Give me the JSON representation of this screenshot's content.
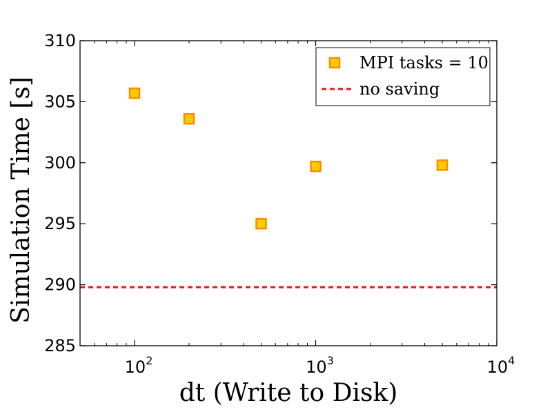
{
  "chart_data": {
    "type": "scatter",
    "title": "",
    "xlabel": "dt (Write to Disk)",
    "ylabel": "Simulation Time [s]",
    "x_scale": "log",
    "xlim": [
      50,
      10000
    ],
    "ylim": [
      285,
      310
    ],
    "grid": false,
    "legend_position": "top-right",
    "x_ticks": [
      {
        "value": 100,
        "base": "10",
        "exp": "2"
      },
      {
        "value": 1000,
        "base": "10",
        "exp": "3"
      },
      {
        "value": 10000,
        "base": "10",
        "exp": "4"
      }
    ],
    "y_ticks": [
      285,
      290,
      295,
      300,
      305,
      310
    ],
    "y_tick_labels": [
      "285",
      "290",
      "295",
      "300",
      "305",
      "310"
    ],
    "series": [
      {
        "name": "MPI tasks = 10",
        "kind": "scatter",
        "marker": "square",
        "fill_color": "#FFCC00",
        "edge_color": "#FF8C00",
        "x": [
          100,
          200,
          500,
          1000,
          5000
        ],
        "y": [
          305.7,
          303.6,
          295.0,
          299.7,
          299.8
        ]
      },
      {
        "name": "no saving",
        "kind": "hline",
        "style": "dashed",
        "color": "#E8141B",
        "y": 289.8
      }
    ]
  }
}
